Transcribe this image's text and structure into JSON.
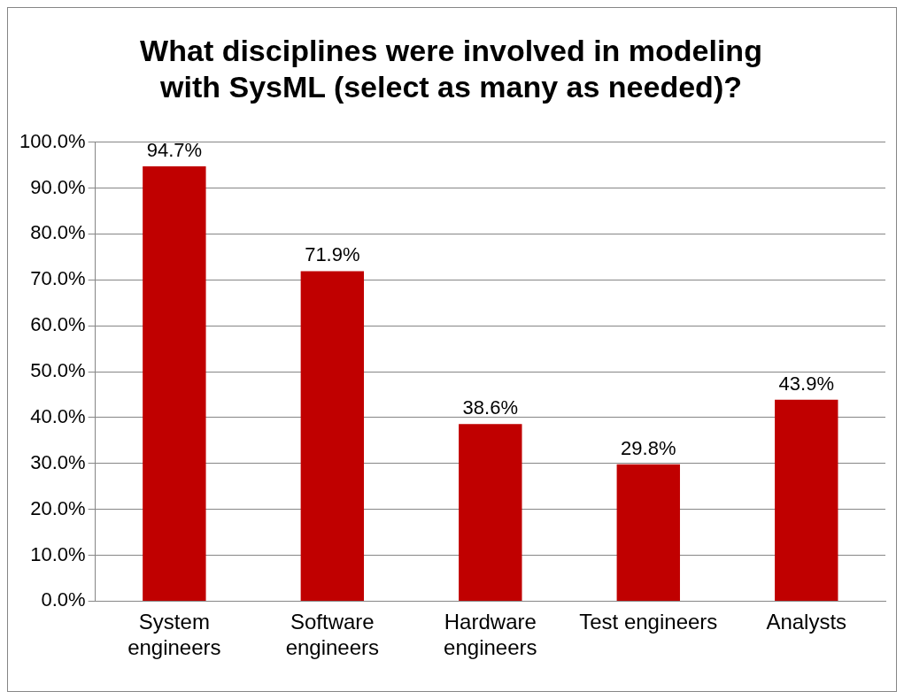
{
  "chart_data": {
    "type": "bar",
    "title": "What disciplines were involved in modeling with SysML (select as many as needed)?",
    "categories": [
      "System engineers",
      "Software engineers",
      "Hardware engineers",
      "Test engineers",
      "Analysts"
    ],
    "values": [
      94.7,
      71.9,
      38.6,
      29.8,
      43.9
    ],
    "value_labels": [
      "94.7%",
      "71.9%",
      "38.6%",
      "29.8%",
      "43.9%"
    ],
    "color": "#c00000",
    "ylim": [
      0,
      100
    ],
    "yticks": [
      {
        "value": 0,
        "label": "0.0%"
      },
      {
        "value": 10,
        "label": "10.0%"
      },
      {
        "value": 20,
        "label": "20.0%"
      },
      {
        "value": 30,
        "label": "30.0%"
      },
      {
        "value": 40,
        "label": "40.0%"
      },
      {
        "value": 50,
        "label": "50.0%"
      },
      {
        "value": 60,
        "label": "60.0%"
      },
      {
        "value": 70,
        "label": "70.0%"
      },
      {
        "value": 80,
        "label": "80.0%"
      },
      {
        "value": 90,
        "label": "90.0%"
      },
      {
        "value": 100,
        "label": "100.0%"
      }
    ],
    "grid": "y"
  }
}
